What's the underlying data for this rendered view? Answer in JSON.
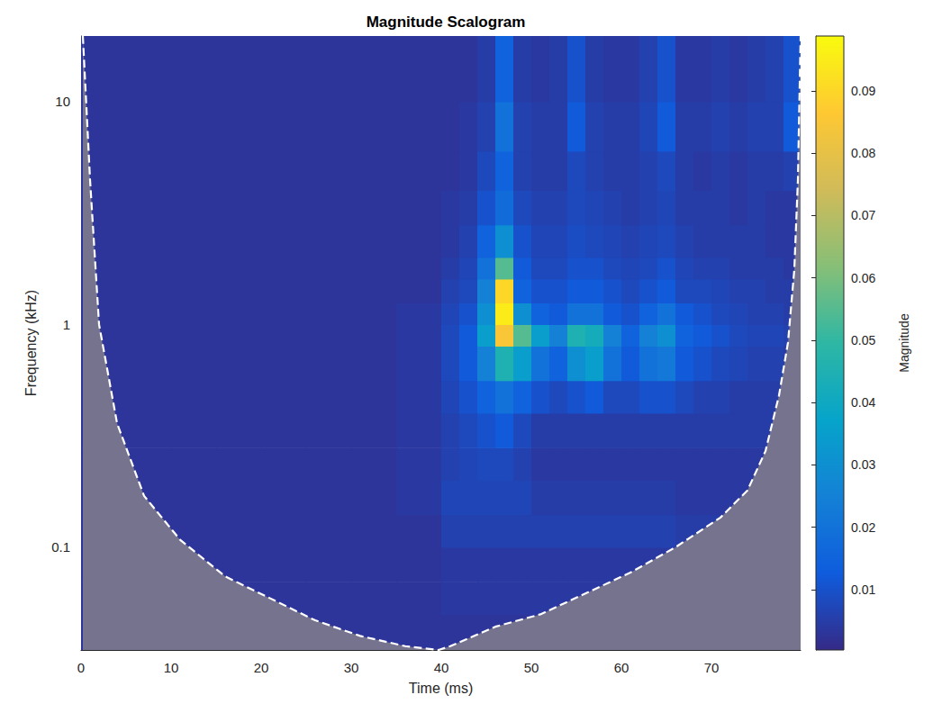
{
  "chart_data": {
    "type": "heatmap",
    "title": "Magnitude Scalogram",
    "x_label": "Time (ms)",
    "y_label": "Frequency (kHz)",
    "xlim": [
      0,
      79.9
    ],
    "xticks": [
      0,
      10,
      20,
      30,
      40,
      50,
      60,
      70
    ],
    "ylim": [
      0.0346,
      19.7
    ],
    "yticks": [
      0.1,
      1,
      10
    ],
    "log": "y",
    "grid": false,
    "x_edges": [
      0,
      5,
      10,
      15,
      20,
      25,
      30,
      35,
      40,
      42,
      44,
      46,
      48,
      50,
      52,
      54,
      56,
      58,
      60,
      62,
      64,
      66,
      68,
      70,
      72,
      74,
      76,
      78,
      80
    ],
    "y_edges": [
      0.0346,
      0.05,
      0.07,
      0.1,
      0.14,
      0.2,
      0.28,
      0.4,
      0.56,
      0.8,
      1.0,
      1.25,
      1.6,
      2.0,
      2.8,
      4,
      6,
      10,
      19.7
    ],
    "values": [
      [
        0.003,
        0.003,
        0.003,
        0.003,
        0.003,
        0.003,
        0.003,
        0.003,
        0.003,
        0.003,
        0.003,
        0.003,
        0.003,
        0.003,
        0.003,
        0.003,
        0.003,
        0.003,
        0.003,
        0.003,
        0.003,
        0.003,
        0.003,
        0.003,
        0.003,
        0.003,
        0.003,
        0.003
      ],
      [
        0.003,
        0.003,
        0.003,
        0.003,
        0.003,
        0.003,
        0.003,
        0.003,
        0.004,
        0.004,
        0.004,
        0.004,
        0.004,
        0.004,
        0.004,
        0.004,
        0.004,
        0.003,
        0.003,
        0.003,
        0.003,
        0.003,
        0.003,
        0.003,
        0.003,
        0.003,
        0.003,
        0.003
      ],
      [
        0.003,
        0.003,
        0.003,
        0.003,
        0.003,
        0.003,
        0.003,
        0.003,
        0.004,
        0.004,
        0.004,
        0.004,
        0.004,
        0.004,
        0.004,
        0.004,
        0.004,
        0.004,
        0.004,
        0.004,
        0.004,
        0.003,
        0.003,
        0.003,
        0.003,
        0.003,
        0.003,
        0.003
      ],
      [
        0.003,
        0.003,
        0.003,
        0.003,
        0.003,
        0.003,
        0.003,
        0.003,
        0.006,
        0.006,
        0.006,
        0.006,
        0.006,
        0.006,
        0.006,
        0.006,
        0.006,
        0.006,
        0.006,
        0.006,
        0.006,
        0.005,
        0.005,
        0.005,
        0.005,
        0.005,
        0.005,
        0.005
      ],
      [
        0.003,
        0.003,
        0.003,
        0.003,
        0.003,
        0.003,
        0.003,
        0.004,
        0.007,
        0.007,
        0.007,
        0.007,
        0.007,
        0.005,
        0.005,
        0.005,
        0.005,
        0.005,
        0.005,
        0.005,
        0.005,
        0.004,
        0.004,
        0.004,
        0.004,
        0.004,
        0.004,
        0.004
      ],
      [
        0.003,
        0.003,
        0.003,
        0.003,
        0.003,
        0.003,
        0.003,
        0.004,
        0.006,
        0.007,
        0.008,
        0.008,
        0.006,
        0.004,
        0.004,
        0.004,
        0.004,
        0.004,
        0.004,
        0.004,
        0.004,
        0.004,
        0.004,
        0.004,
        0.004,
        0.004,
        0.004,
        0.004
      ],
      [
        0.003,
        0.003,
        0.003,
        0.003,
        0.003,
        0.003,
        0.003,
        0.004,
        0.006,
        0.008,
        0.01,
        0.012,
        0.008,
        0.005,
        0.005,
        0.005,
        0.005,
        0.005,
        0.005,
        0.005,
        0.005,
        0.005,
        0.005,
        0.005,
        0.005,
        0.005,
        0.005,
        0.005
      ],
      [
        0.003,
        0.003,
        0.003,
        0.003,
        0.003,
        0.003,
        0.003,
        0.004,
        0.007,
        0.01,
        0.015,
        0.02,
        0.015,
        0.01,
        0.008,
        0.01,
        0.012,
        0.008,
        0.008,
        0.01,
        0.01,
        0.008,
        0.006,
        0.006,
        0.005,
        0.005,
        0.005,
        0.004
      ],
      [
        0.003,
        0.003,
        0.003,
        0.003,
        0.003,
        0.003,
        0.003,
        0.004,
        0.008,
        0.012,
        0.025,
        0.045,
        0.035,
        0.02,
        0.015,
        0.03,
        0.035,
        0.02,
        0.012,
        0.02,
        0.022,
        0.012,
        0.01,
        0.008,
        0.007,
        0.006,
        0.006,
        0.005
      ],
      [
        0.003,
        0.003,
        0.003,
        0.003,
        0.003,
        0.003,
        0.003,
        0.004,
        0.008,
        0.012,
        0.035,
        0.085,
        0.055,
        0.035,
        0.025,
        0.045,
        0.042,
        0.025,
        0.015,
        0.025,
        0.03,
        0.015,
        0.012,
        0.01,
        0.008,
        0.007,
        0.007,
        0.006
      ],
      [
        0.003,
        0.003,
        0.003,
        0.003,
        0.003,
        0.003,
        0.003,
        0.004,
        0.007,
        0.01,
        0.03,
        0.095,
        0.03,
        0.015,
        0.012,
        0.02,
        0.02,
        0.012,
        0.01,
        0.015,
        0.02,
        0.012,
        0.01,
        0.008,
        0.007,
        0.006,
        0.006,
        0.005
      ],
      [
        0.003,
        0.003,
        0.003,
        0.003,
        0.003,
        0.003,
        0.003,
        0.003,
        0.006,
        0.008,
        0.025,
        0.09,
        0.015,
        0.01,
        0.01,
        0.012,
        0.012,
        0.01,
        0.008,
        0.01,
        0.012,
        0.008,
        0.008,
        0.007,
        0.006,
        0.006,
        0.005,
        0.005
      ],
      [
        0.003,
        0.003,
        0.003,
        0.003,
        0.003,
        0.003,
        0.003,
        0.003,
        0.005,
        0.007,
        0.02,
        0.055,
        0.012,
        0.008,
        0.008,
        0.01,
        0.01,
        0.008,
        0.007,
        0.008,
        0.01,
        0.007,
        0.006,
        0.006,
        0.005,
        0.005,
        0.005,
        0.004
      ],
      [
        0.003,
        0.003,
        0.003,
        0.003,
        0.003,
        0.003,
        0.003,
        0.003,
        0.004,
        0.006,
        0.015,
        0.03,
        0.01,
        0.007,
        0.007,
        0.009,
        0.008,
        0.007,
        0.006,
        0.007,
        0.008,
        0.006,
        0.005,
        0.005,
        0.005,
        0.005,
        0.004,
        0.004
      ],
      [
        0.003,
        0.003,
        0.003,
        0.003,
        0.003,
        0.003,
        0.003,
        0.003,
        0.004,
        0.005,
        0.01,
        0.018,
        0.008,
        0.006,
        0.006,
        0.008,
        0.007,
        0.006,
        0.005,
        0.006,
        0.007,
        0.005,
        0.005,
        0.005,
        0.004,
        0.005,
        0.004,
        0.004
      ],
      [
        0.003,
        0.003,
        0.003,
        0.003,
        0.003,
        0.003,
        0.003,
        0.003,
        0.003,
        0.004,
        0.008,
        0.015,
        0.006,
        0.005,
        0.005,
        0.008,
        0.006,
        0.005,
        0.005,
        0.006,
        0.008,
        0.005,
        0.004,
        0.005,
        0.004,
        0.005,
        0.005,
        0.006
      ],
      [
        0.003,
        0.003,
        0.003,
        0.003,
        0.003,
        0.003,
        0.003,
        0.003,
        0.003,
        0.004,
        0.006,
        0.02,
        0.006,
        0.005,
        0.005,
        0.012,
        0.006,
        0.005,
        0.005,
        0.007,
        0.012,
        0.005,
        0.005,
        0.006,
        0.005,
        0.006,
        0.006,
        0.012
      ],
      [
        0.003,
        0.003,
        0.003,
        0.003,
        0.003,
        0.003,
        0.003,
        0.003,
        0.003,
        0.003,
        0.005,
        0.015,
        0.005,
        0.004,
        0.005,
        0.01,
        0.005,
        0.004,
        0.004,
        0.006,
        0.01,
        0.004,
        0.004,
        0.005,
        0.004,
        0.005,
        0.006,
        0.01
      ]
    ],
    "clim": [
      0.0003,
      0.0988
    ],
    "cticks": [
      0.01,
      0.02,
      0.03,
      0.04,
      0.05,
      0.06,
      0.07,
      0.08,
      0.09
    ],
    "colorbar_label": "Magnitude",
    "cone_of_influence": {
      "x": [
        0.2,
        1,
        2,
        4,
        7,
        11,
        16,
        21,
        26,
        31,
        36,
        39.7,
        41,
        46,
        51,
        56,
        61,
        66,
        71,
        74,
        76,
        77.5,
        78.5,
        79.2,
        79.6,
        79.9
      ],
      "y": [
        19.7,
        4.45,
        1.0,
        0.36,
        0.17,
        0.108,
        0.074,
        0.059,
        0.047,
        0.04,
        0.036,
        0.0346,
        0.036,
        0.044,
        0.05,
        0.062,
        0.077,
        0.1,
        0.136,
        0.18,
        0.27,
        0.48,
        0.83,
        1.76,
        4.45,
        19.7
      ],
      "line_style": "dashed"
    }
  }
}
